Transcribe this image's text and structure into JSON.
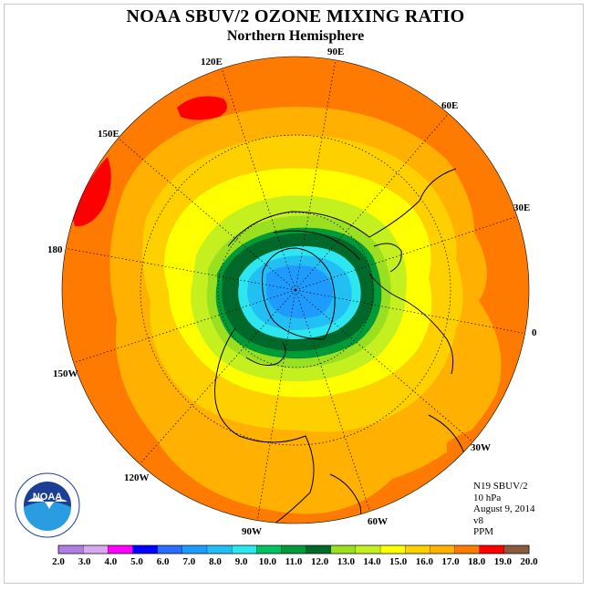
{
  "title": "NOAA SBUV/2 OZONE MIXING RATIO",
  "subtitle": "Northern Hemisphere",
  "longitude_labels": [
    "90E",
    "60E",
    "30E",
    "0",
    "30W",
    "60W",
    "90W",
    "120W",
    "150W",
    "180",
    "150E",
    "120E"
  ],
  "info": {
    "satellite": "N19 SBUV/2",
    "pressure": "10 hPa",
    "date": "August 9, 2014",
    "version": "v8",
    "units": "PPM"
  },
  "logo": {
    "text": "NOAA",
    "ring_text": "NATIONAL OCEANIC AND ATMOSPHERIC ADMINISTRATION · U.S. DEPARTMENT OF COMMERCE"
  },
  "colorbar": {
    "ticks": [
      "2.0",
      "3.0",
      "4.0",
      "5.0",
      "6.0",
      "7.0",
      "8.0",
      "9.0",
      "10.0",
      "11.0",
      "12.0",
      "13.0",
      "14.0",
      "15.0",
      "16.0",
      "17.0",
      "18.0",
      "19.0",
      "20.0"
    ],
    "colors": [
      "#b07ee0",
      "#d9a8f0",
      "#ff00ff",
      "#0000ff",
      "#2a6cff",
      "#1e9bff",
      "#22bff5",
      "#2ce6f0",
      "#00c060",
      "#009a38",
      "#006828",
      "#9be020",
      "#c4f020",
      "#ffff00",
      "#ffd000",
      "#ffb000",
      "#ff7a00",
      "#ff0000",
      "#8b5a3c"
    ]
  },
  "colors": {
    "bg_orange": "#ff8c00",
    "c17": "#ff7a00",
    "c16": "#ffb000",
    "c15": "#ffd000",
    "c14": "#ffff00",
    "c13": "#c4f020",
    "c12": "#9be020",
    "c11": "#009a38",
    "c10": "#006828",
    "c9": "#2ce6f0",
    "c8": "#22bff5",
    "c7": "#1e9bff",
    "red": "#ff0000"
  }
}
